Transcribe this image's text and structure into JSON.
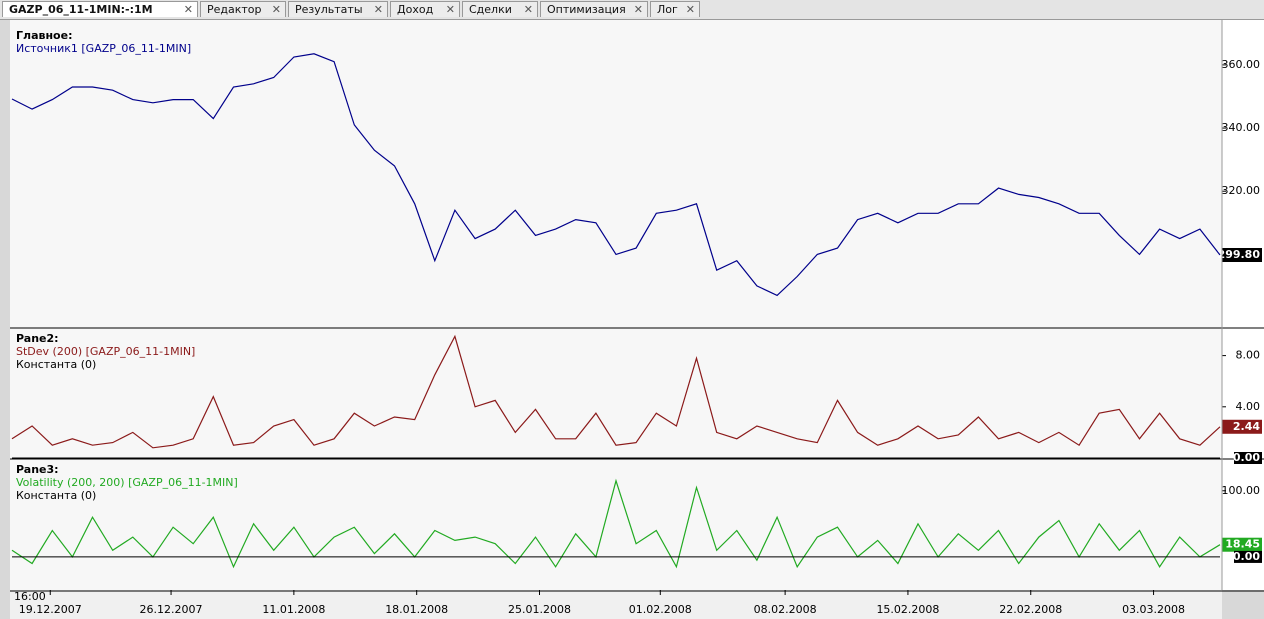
{
  "tabs": [
    "GAZP_06_11-1MIN:-:1M",
    "Редактор",
    "Результаты",
    "Доход",
    "Сделки",
    "Оптимизация",
    "Лог"
  ],
  "time_label": "16:00",
  "chart_data": [
    {
      "type": "line",
      "title": "Главное:",
      "xlim": [
        0,
        60
      ],
      "ylim": [
        277,
        372
      ],
      "yticks": [
        {
          "value": 320,
          "label": "320.00"
        },
        {
          "value": 340,
          "label": "340.00"
        },
        {
          "value": 360,
          "label": "360.00"
        }
      ],
      "series": [
        {
          "name": "Источник1 [GAZP_06_11-1MIN]",
          "color": "#00008b",
          "values": [
            349.2,
            346,
            349,
            353,
            353,
            352,
            349,
            348,
            349,
            349,
            343,
            353,
            354,
            356,
            362.5,
            363.5,
            361,
            341,
            333,
            328,
            316,
            298,
            314,
            305,
            308,
            314,
            306,
            308,
            311,
            310,
            300,
            302,
            313,
            314,
            316,
            295,
            298,
            290,
            287,
            293,
            300,
            302,
            311,
            313,
            310,
            313,
            313,
            316,
            316,
            321,
            319,
            318,
            316,
            313,
            313,
            306,
            300,
            308,
            305,
            308,
            299.8
          ],
          "last_value": {
            "value": 299.8,
            "label": "299.80"
          }
        }
      ]
    },
    {
      "type": "line",
      "title": "Pane2:",
      "xlim": [
        0,
        60
      ],
      "ylim": [
        0,
        10
      ],
      "yticks": [
        {
          "value": 4,
          "label": "4.00"
        },
        {
          "value": 8,
          "label": "8.00"
        }
      ],
      "series": [
        {
          "name": "StDev (200) [GAZP_06_11-1MIN]",
          "color": "#8b1a1a",
          "values": [
            1.5,
            2.5,
            1,
            1.5,
            1,
            1.2,
            2,
            0.8,
            1,
            1.5,
            4.8,
            1,
            1.2,
            2.5,
            3,
            1,
            1.5,
            3.5,
            2.5,
            3.2,
            3,
            6.5,
            9.5,
            4,
            4.5,
            2,
            3.8,
            1.5,
            1.5,
            3.5,
            1,
            1.2,
            3.5,
            2.5,
            7.8,
            2,
            1.5,
            2.5,
            2,
            1.5,
            1.2,
            4.5,
            2,
            1,
            1.5,
            2.5,
            1.5,
            1.8,
            3.2,
            1.5,
            2,
            1.2,
            2,
            1,
            3.5,
            3.8,
            1.5,
            3.5,
            1.5,
            1,
            2.44
          ],
          "last_value": {
            "value": 2.44,
            "label": "2.44"
          }
        },
        {
          "name": "Константа (0)",
          "color": "#000000",
          "constant": {
            "value": 0,
            "label": "0.00"
          }
        }
      ]
    },
    {
      "type": "line",
      "title": "Pane3:",
      "xlim": [
        0,
        60
      ],
      "ylim": [
        -50,
        145
      ],
      "yticks": [
        {
          "value": 100,
          "label": "100.00"
        }
      ],
      "xticks": [
        {
          "value": 1.9,
          "label": "19.12.2007"
        },
        {
          "value": 7.9,
          "label": "26.12.2007"
        },
        {
          "value": 14,
          "label": "11.01.2008"
        },
        {
          "value": 20.1,
          "label": "18.01.2008"
        },
        {
          "value": 26.2,
          "label": "25.01.2008"
        },
        {
          "value": 32.2,
          "label": "01.02.2008"
        },
        {
          "value": 38.4,
          "label": "08.02.2008"
        },
        {
          "value": 44.5,
          "label": "15.02.2008"
        },
        {
          "value": 50.6,
          "label": "22.02.2008"
        },
        {
          "value": 56.7,
          "label": "03.03.2008"
        }
      ],
      "series": [
        {
          "name": "Volatility (200, 200) [GAZP_06_11-1MIN]",
          "color": "#22aa22",
          "values": [
            10,
            -10,
            40,
            0,
            60,
            10,
            30,
            0,
            45,
            20,
            60,
            -15,
            50,
            10,
            45,
            0,
            30,
            45,
            5,
            35,
            0,
            40,
            25,
            30,
            20,
            -10,
            30,
            -15,
            35,
            0,
            115,
            20,
            40,
            -15,
            105,
            10,
            40,
            -5,
            60,
            -15,
            30,
            45,
            0,
            25,
            -10,
            50,
            0,
            35,
            10,
            40,
            -10,
            30,
            55,
            0,
            50,
            10,
            40,
            -15,
            30,
            0,
            18.45
          ],
          "last_value": {
            "value": 18.45,
            "label": "18.45"
          }
        },
        {
          "name": "Константа (0)",
          "color": "#000000",
          "constant": {
            "value": 0,
            "label": "0.00"
          }
        }
      ]
    }
  ]
}
